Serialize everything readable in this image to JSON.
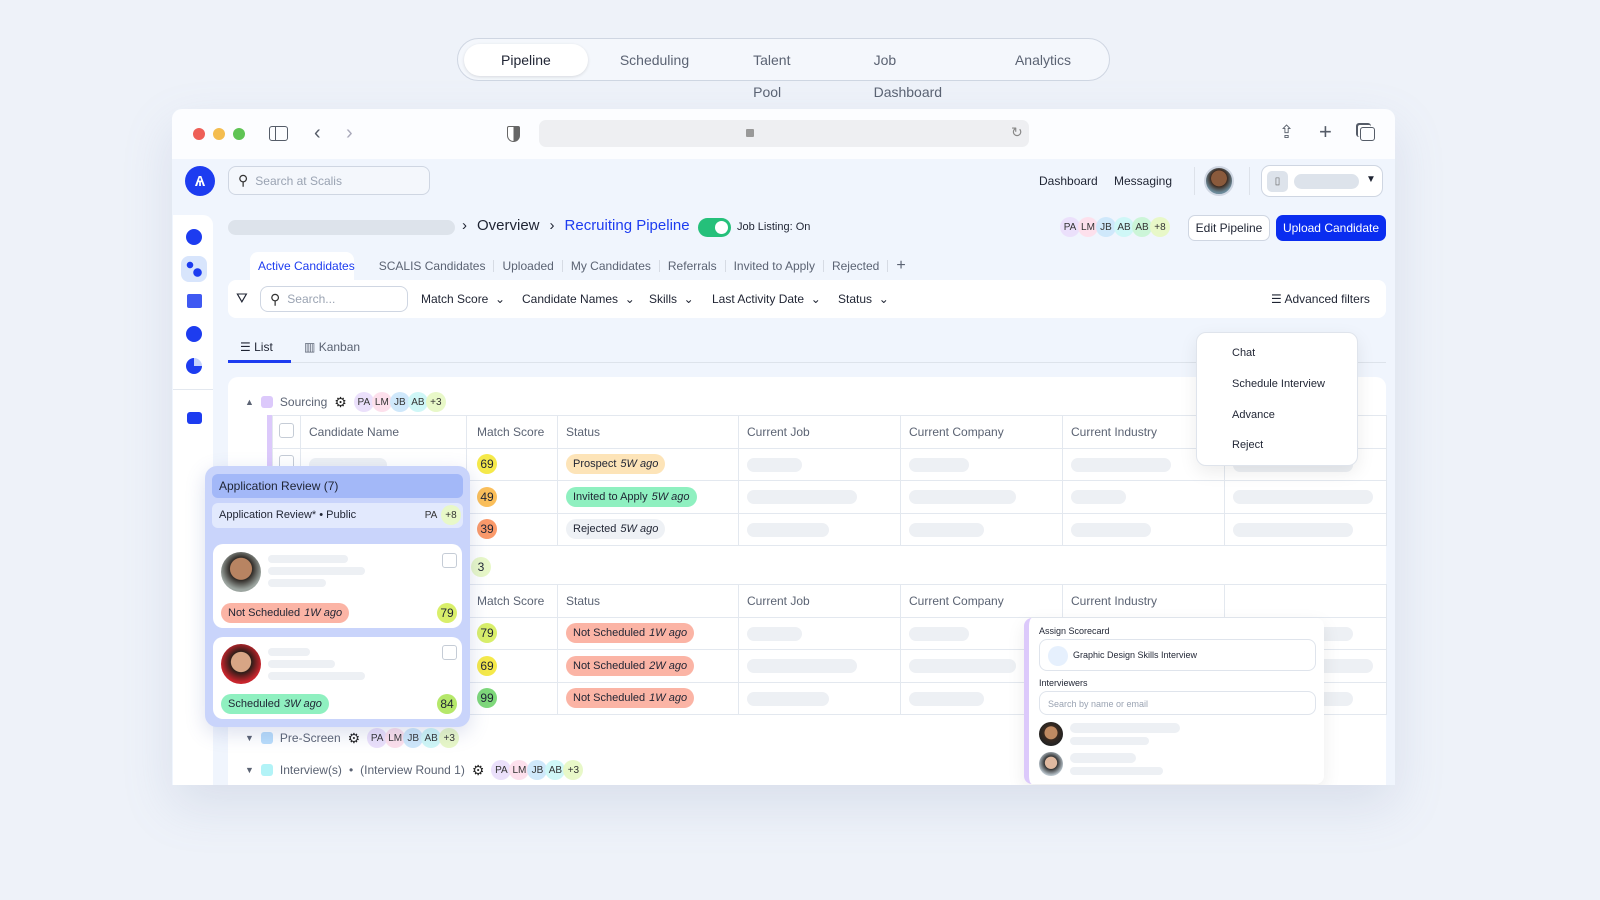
{
  "top_nav": {
    "tabs": [
      "Pipeline",
      "Scheduling",
      "Talent Pool",
      "Job Dashboard",
      "Analytics"
    ],
    "active": "Pipeline"
  },
  "browser": {
    "traffic_lights": [
      "#ee5f57",
      "#f4bd4f",
      "#5fc454"
    ]
  },
  "header": {
    "search_placeholder": "Search at Scalis",
    "links": [
      "Dashboard",
      "Messaging"
    ],
    "accent": "#1d3cf0"
  },
  "breadcrumb": {
    "items": [
      "Overview",
      "Recruiting Pipeline"
    ]
  },
  "job_listing": {
    "label": "Job Listing: On",
    "on": true
  },
  "team": {
    "avatars": [
      "PA",
      "LM",
      "JB",
      "AB",
      "AB"
    ],
    "more": "+8"
  },
  "actions": {
    "edit": "Edit Pipeline",
    "upload": "Upload Candidate"
  },
  "candidate_tabs": [
    "Active Candidates",
    "SCALIS Candidates",
    "Uploaded",
    "My Candidates",
    "Referrals",
    "Invited to Apply",
    "Rejected"
  ],
  "add_tab": "+",
  "filters": {
    "search_placeholder": "Search...",
    "dropdowns": [
      "Match Score",
      "Candidate Names",
      "Skills",
      "Last Activity Date",
      "Status"
    ],
    "advanced": "Advanced filters"
  },
  "views": {
    "list": "List",
    "kanban": "Kanban",
    "active": "List"
  },
  "groups": {
    "sourcing": {
      "name": "Sourcing",
      "avatars": [
        "PA",
        "LM",
        "JB",
        "AB"
      ],
      "more": "+3"
    },
    "prescreen": {
      "name": "Pre-Screen",
      "avatars": [
        "PA",
        "LM",
        "JB",
        "AB"
      ],
      "more": "+3"
    },
    "interviews": {
      "name": "Interview(s)",
      "sub": "(Interview Round 1)",
      "avatars": [
        "PA",
        "LM",
        "JB",
        "AB"
      ],
      "more": "+3"
    }
  },
  "columns": [
    "Candidate Name",
    "Match Score",
    "Status",
    "Current Job",
    "Current Company",
    "Current Industry"
  ],
  "table1": [
    {
      "score": "69",
      "status": "Prospect",
      "ago": "5W ago"
    },
    {
      "score": "49",
      "status": "Invited to Apply",
      "ago": "5W ago"
    },
    {
      "score": "39",
      "status": "Rejected",
      "ago": "5W ago"
    }
  ],
  "hidden_group_badge": "3",
  "table2": [
    {
      "score": "79",
      "status": "Not Scheduled",
      "ago": "1W ago"
    },
    {
      "score": "69",
      "status": "Not Scheduled",
      "ago": "2W ago"
    },
    {
      "score": "99",
      "status": "Not Scheduled",
      "ago": "1W ago"
    }
  ],
  "context_menu": [
    "Chat",
    "Schedule Interview",
    "Advance",
    "Reject"
  ],
  "kanban_card": {
    "title": "Application Review (7)",
    "subtitle": "Application Review* • Public",
    "avatar": "PA",
    "more": "+8",
    "cards": [
      {
        "status": "Not Scheduled",
        "ago": "1W ago",
        "score": "79"
      },
      {
        "status": "Scheduled",
        "ago": "3W ago",
        "score": "84"
      }
    ]
  },
  "scorecard": {
    "label": "Assign Scorecard",
    "value": "Graphic Design Skills Interview",
    "interviewers_label": "Interviewers",
    "search_placeholder": "Search by name or email"
  }
}
